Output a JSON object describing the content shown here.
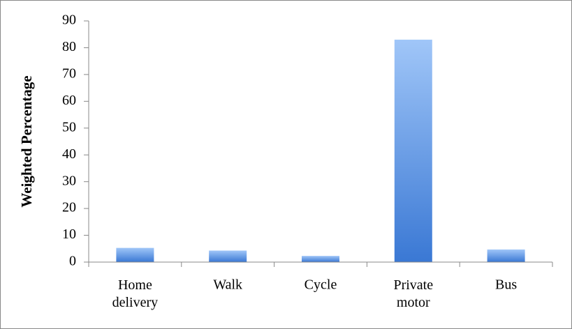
{
  "chart_data": {
    "type": "bar",
    "categories": [
      "Home delivery",
      "Walk",
      "Cycle",
      "Private motor",
      "Bus"
    ],
    "values": [
      5.3,
      4.3,
      2.3,
      83,
      4.7
    ],
    "ylabel": "Weighted Percentage",
    "ylim": [
      0,
      90
    ],
    "yticks": [
      0,
      10,
      20,
      30,
      40,
      50,
      60,
      70,
      80,
      90
    ],
    "color": [
      "#a0c6f8",
      "#3a78d4"
    ],
    "grid": false
  }
}
